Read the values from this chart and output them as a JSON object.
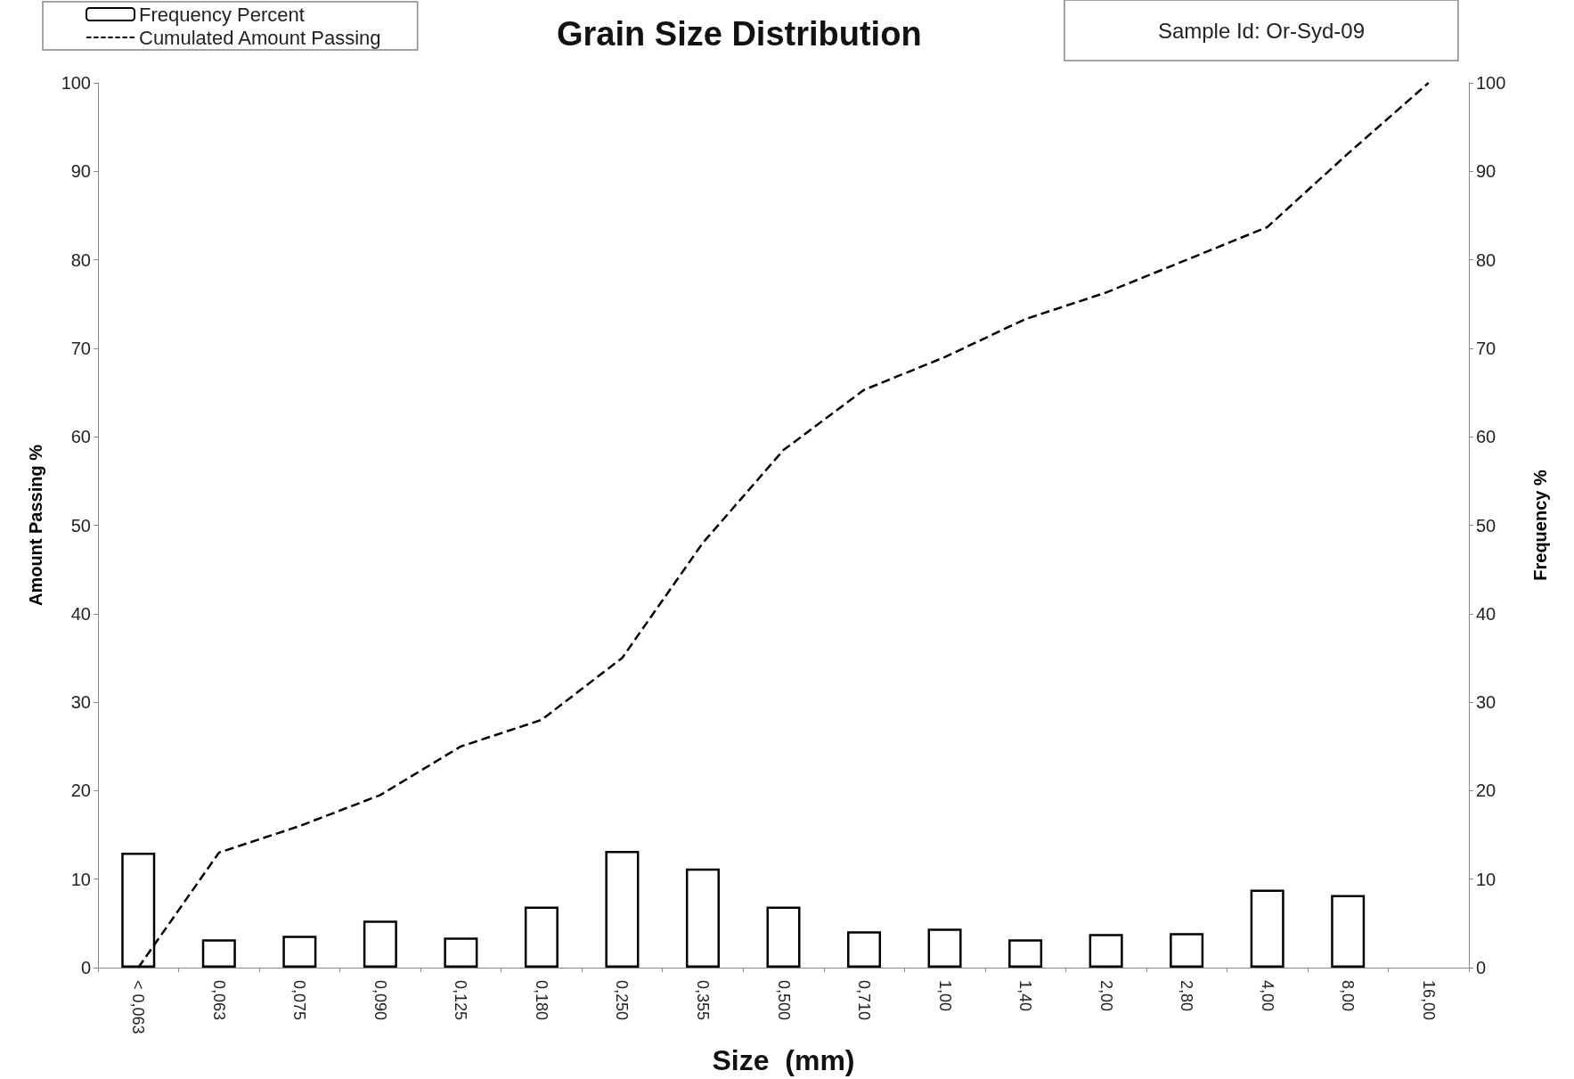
{
  "chart_data": {
    "type": "bar",
    "title": "Grain Size Distribution",
    "xlabel": "Size  (mm)",
    "ylabel": "Amount Passing %",
    "y2label": "Frequency %",
    "annotations": [
      "Sample Id: Or-Syd-09"
    ],
    "categories": [
      "< 0,063",
      "0,063",
      "0,075",
      "0,090",
      "0,125",
      "0,180",
      "0,250",
      "0,355",
      "0,500",
      "0,710",
      "1,00",
      "1,40",
      "2,00",
      "2,80",
      "4,00",
      "8,00",
      "16,00"
    ],
    "series": [
      {
        "name": "Frequency Percent",
        "type": "bar",
        "axis": "y2",
        "color": "#ffffff",
        "values": [
          13,
          3.2,
          3.6,
          5.3,
          3.4,
          6.9,
          13.2,
          11.2,
          6.9,
          4.1,
          4.4,
          3.2,
          3.8,
          3.9,
          8.8,
          8.2,
          null
        ]
      },
      {
        "name": "Cumulated Amount Passing",
        "type": "line",
        "color": "#000000",
        "line_style": "dashed",
        "values": [
          0,
          13,
          16,
          19.5,
          25,
          28,
          35,
          48,
          58.5,
          65.3,
          69,
          73.3,
          76.3,
          80,
          83.7,
          92,
          100
        ]
      }
    ],
    "ylim": [
      0,
      100
    ],
    "yticks": [
      0,
      10,
      20,
      30,
      40,
      50,
      60,
      70,
      80,
      90,
      100
    ],
    "y2lim": [
      0,
      100
    ],
    "y2ticks": [
      0,
      10,
      20,
      30,
      40,
      50,
      60,
      70,
      80,
      90,
      100
    ],
    "grid": false,
    "legend": "top left",
    "marker": "none"
  }
}
